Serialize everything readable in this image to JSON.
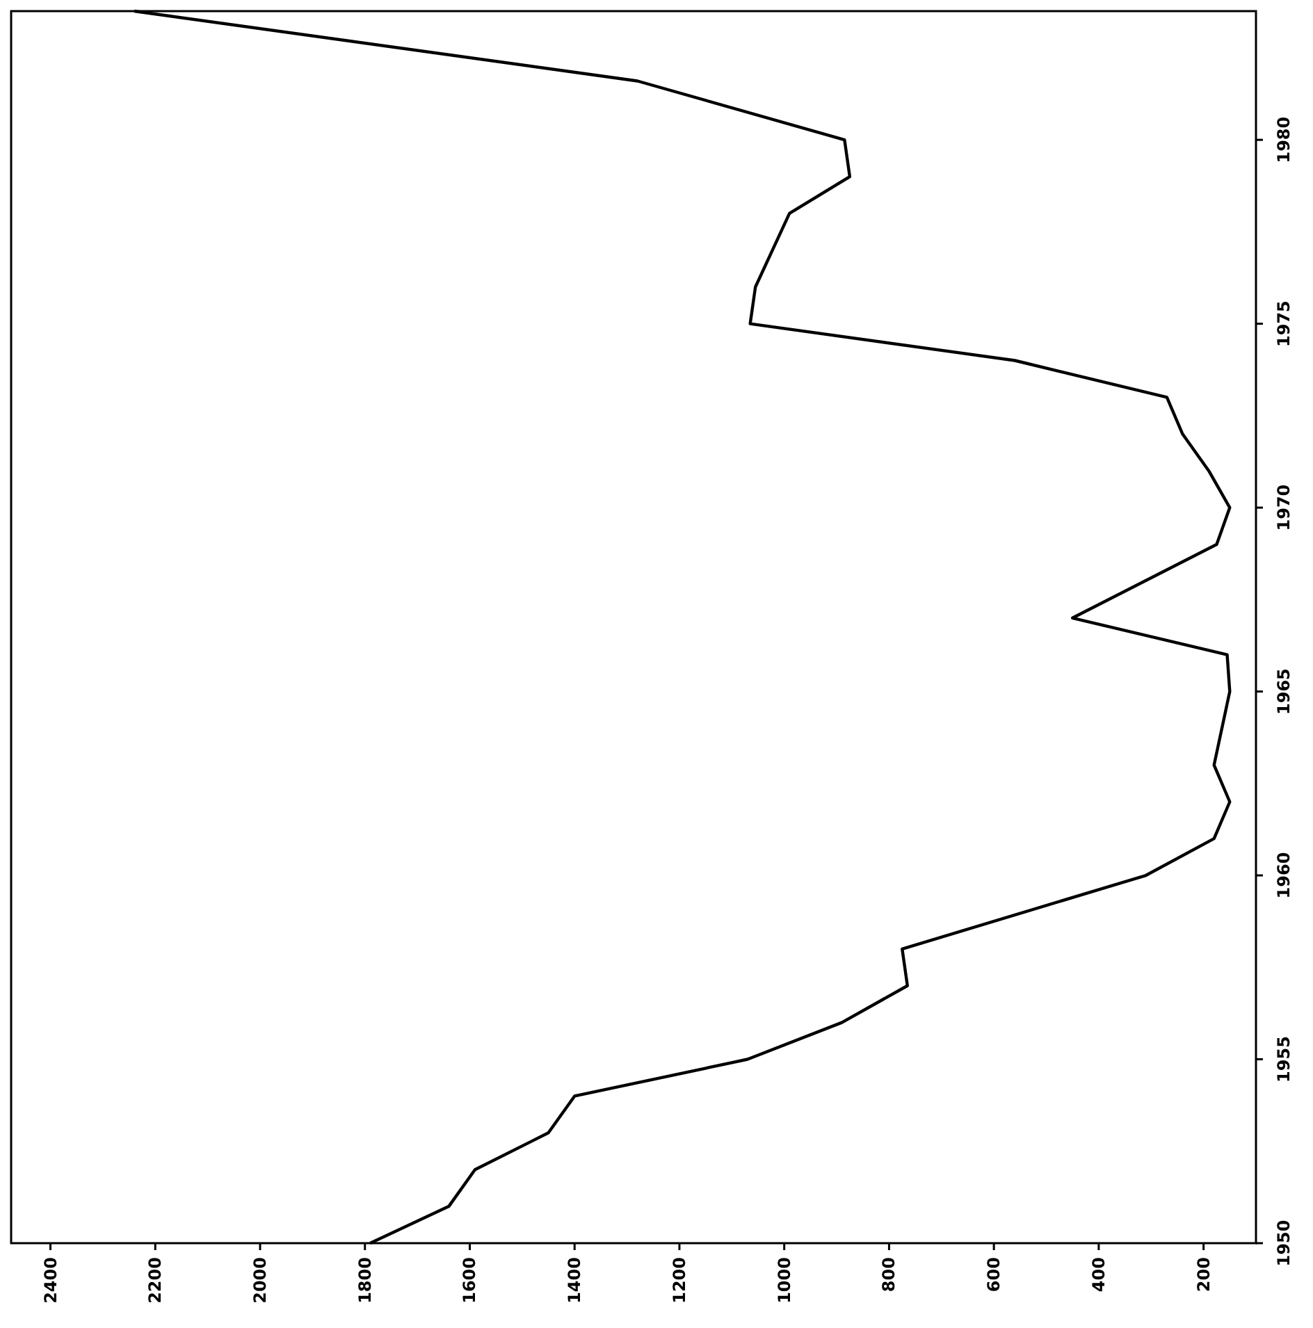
{
  "chart_data": {
    "type": "line",
    "series": [
      {
        "color": "#000000",
        "x": [
          1790,
          1640,
          1590,
          1450,
          1400,
          1070,
          890,
          765,
          775,
          310,
          180,
          150,
          180,
          150,
          155,
          450,
          175,
          150,
          190,
          240,
          270,
          560,
          1065,
          1055,
          990,
          875,
          885,
          1280,
          2240
        ],
        "values": [
          1950,
          1951,
          1952,
          1953,
          1954,
          1955,
          1956,
          1957,
          1958,
          1960,
          1961,
          1962,
          1963,
          1965,
          1966,
          1967,
          1969,
          1970,
          1971,
          1972,
          1973,
          1974,
          1975,
          1976,
          1978,
          1979,
          1980,
          1981.6,
          1983.5
        ]
      }
    ],
    "xlim": [
      2475,
      100
    ],
    "xticks": [
      2400,
      2200,
      2000,
      1800,
      1600,
      1400,
      1200,
      1000,
      800,
      600,
      400,
      200
    ],
    "ylim": [
      1950,
      1983.5
    ],
    "yticks": [
      1950,
      1955,
      1960,
      1965,
      1970,
      1975,
      1980
    ],
    "grid": false,
    "marker": "none",
    "line_style": "solid"
  }
}
